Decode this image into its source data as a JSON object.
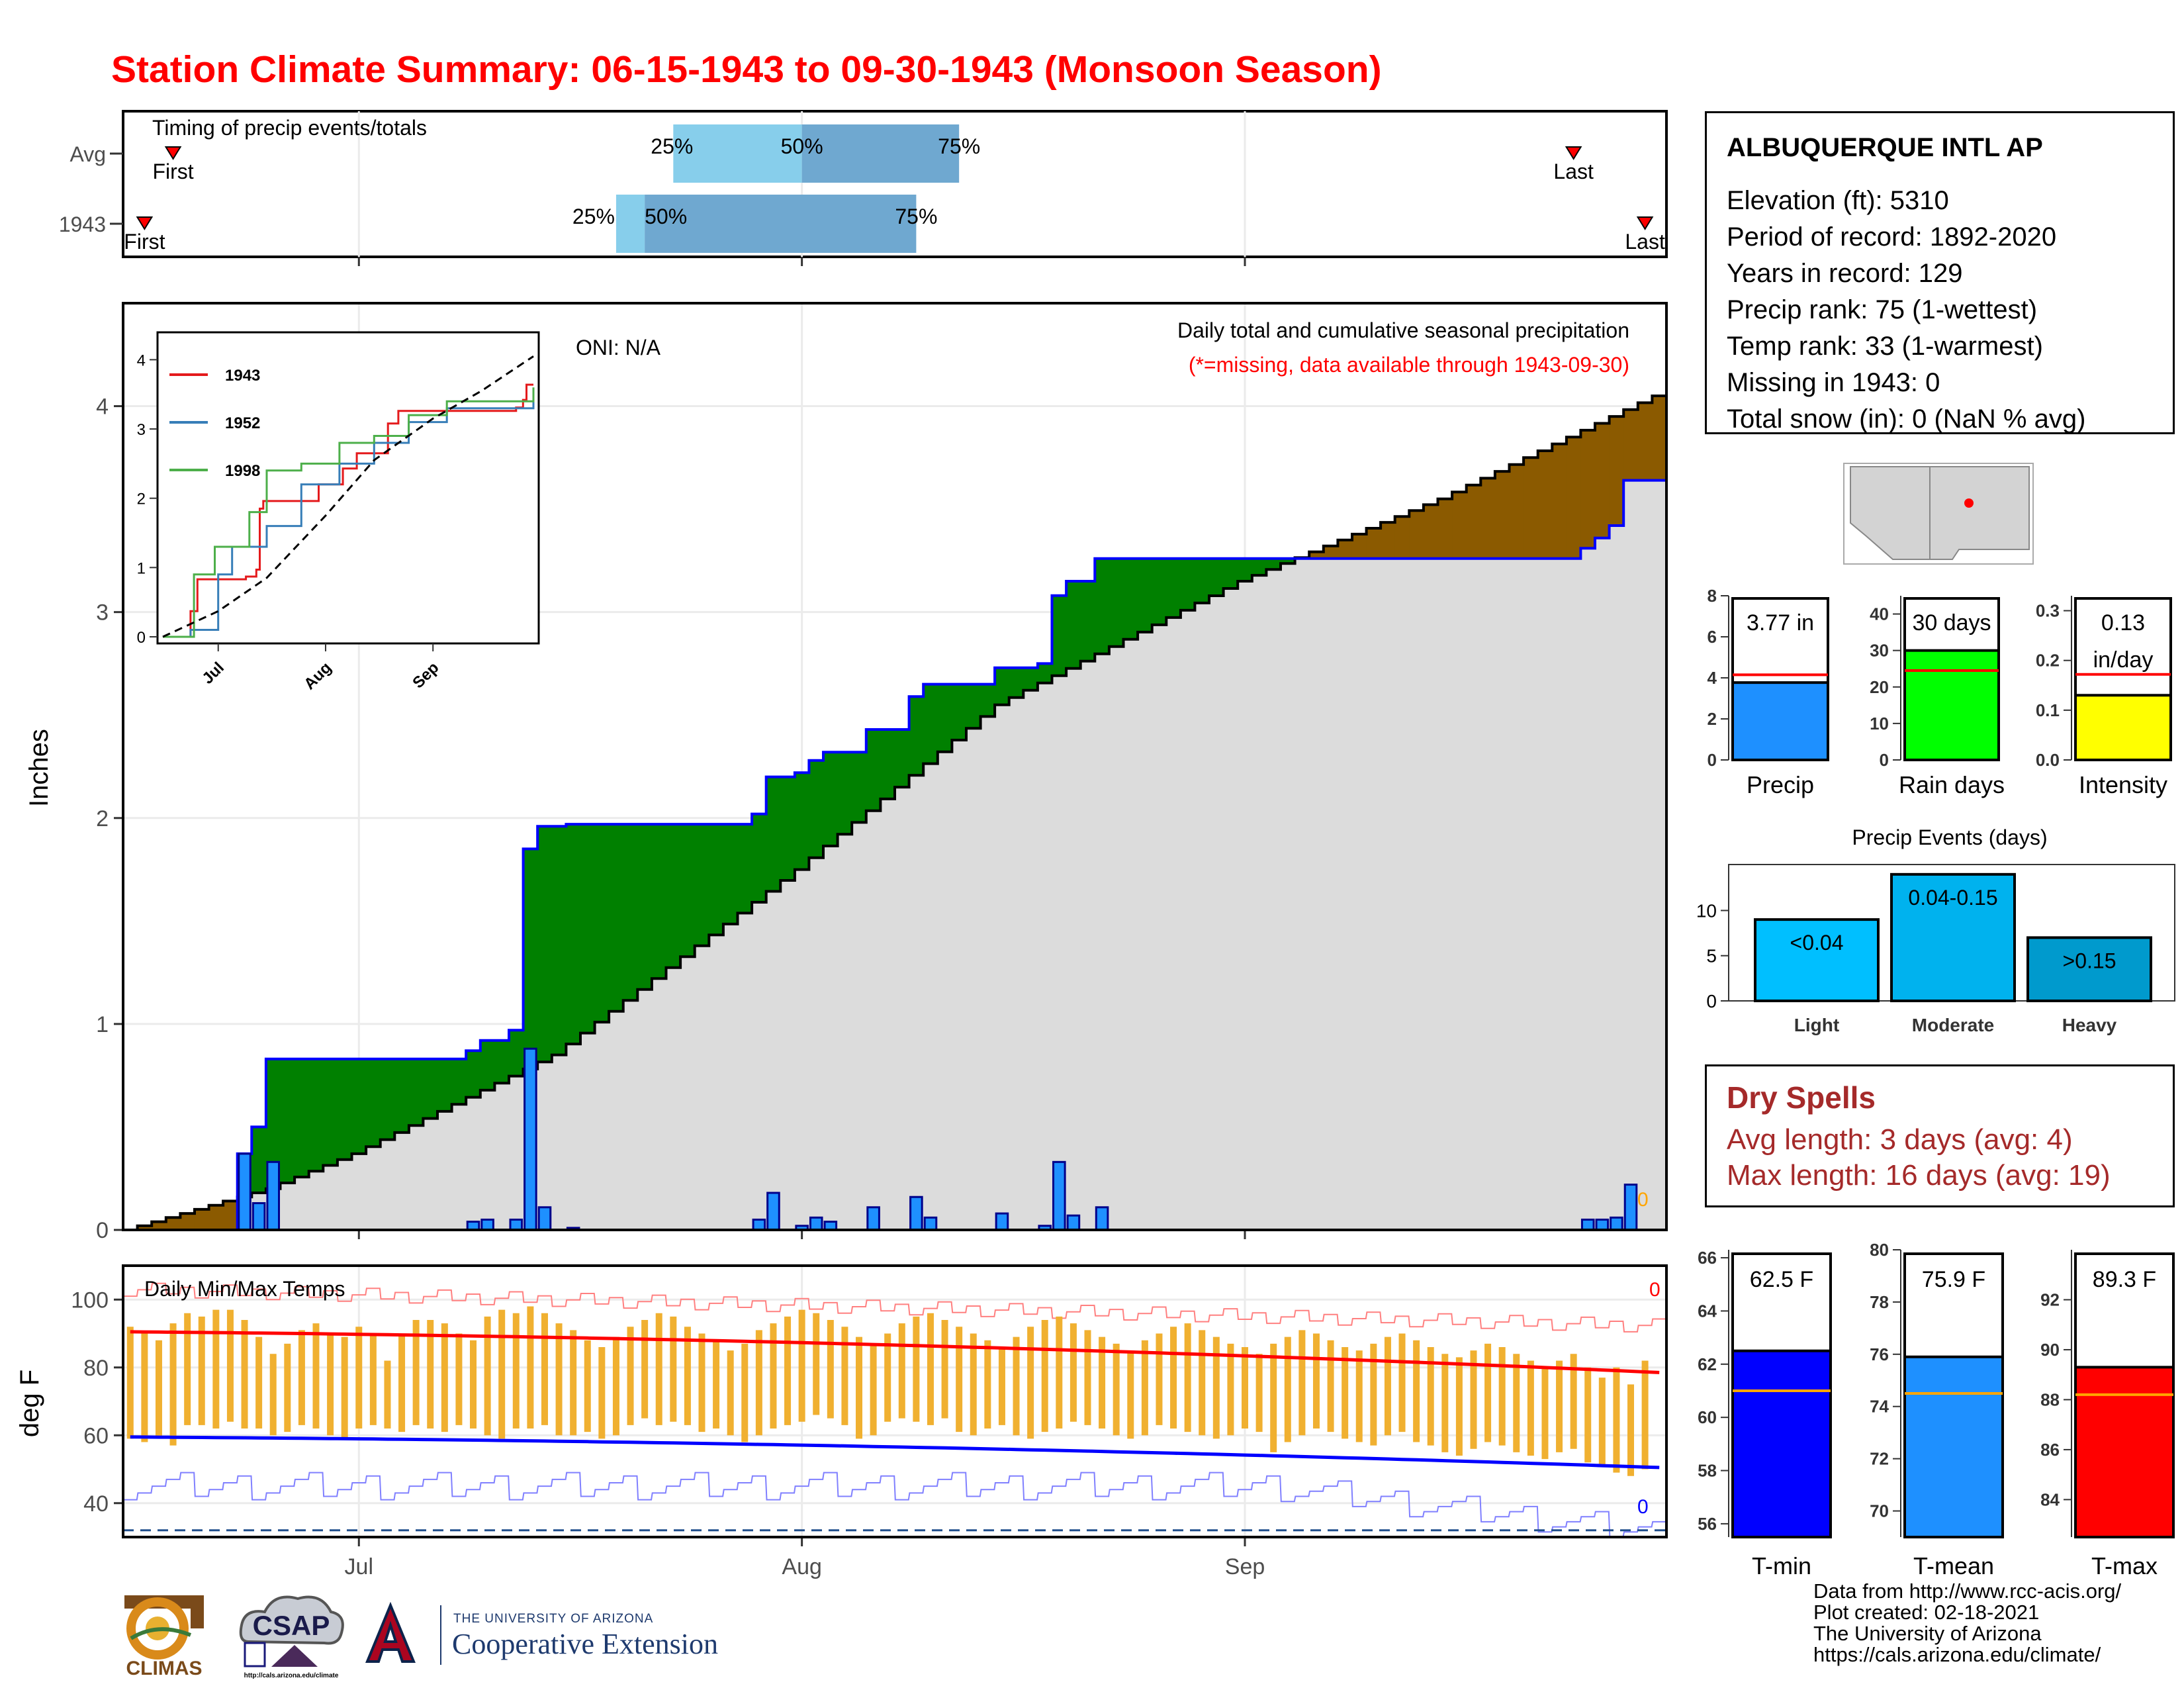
{
  "title": "Station Climate Summary: 06-15-1943 to 09-30-1943 (Monsoon Season)",
  "colors": {
    "title": "#ff0000",
    "green": "#008000",
    "brown": "#8b5a00",
    "precip_bar": "#1e90ff",
    "tmax": "#ff0000",
    "tmin": "#0000ff",
    "orange_bar": "#f0b030",
    "dry": "#a52a2a"
  },
  "timing": {
    "label": "Timing of precip events/totals",
    "rows": [
      {
        "name": "Avg",
        "first_label": "First",
        "last_label": "Last",
        "first": "06-18",
        "last": "09-24",
        "p25": "07-23",
        "p50": "08-01",
        "p75": "08-12",
        "p25_label": "25%",
        "p50_label": "50%",
        "p75_label": "75%"
      },
      {
        "name": "1943",
        "first_label": "First",
        "last_label": "Last",
        "first": "06-16",
        "last": "09-29",
        "p25": "07-19",
        "p50": "07-21",
        "p75": "08-09",
        "p25_label": "25%",
        "p50_label": "50%",
        "p75_label": "75%"
      }
    ]
  },
  "main": {
    "oni": "ONI: N/A",
    "caption": "Daily total and cumulative seasonal precipitation",
    "missing_note": "(*=missing, data available through 1943-09-30)",
    "ylabel": "Inches",
    "yticks": [
      "0",
      "1",
      "2",
      "3",
      "4"
    ],
    "end_marker": "0"
  },
  "inset": {
    "yticks": [
      "0",
      "1",
      "2",
      "3",
      "4"
    ],
    "xticks": [
      "Jul",
      "Aug",
      "Sep"
    ],
    "legend": [
      {
        "name": "1943",
        "color": "#e41a1c"
      },
      {
        "name": "1952",
        "color": "#377eb8"
      },
      {
        "name": "1998",
        "color": "#4daf4a"
      }
    ]
  },
  "temps": {
    "label": "Daily Min/Max Temps",
    "ylabel": "deg F",
    "yticks": [
      "40",
      "60",
      "80",
      "100"
    ],
    "xticks": [
      "Jul",
      "Aug",
      "Sep"
    ],
    "count_top": "0",
    "count_bottom": "0"
  },
  "station": {
    "name": "ALBUQUERQUE INTL AP",
    "lines": [
      "Elevation (ft): 5310",
      "Period of record: 1892-2020",
      "Years in record: 129",
      "Precip rank: 75 (1-wettest)",
      "Temp rank: 33 (1-warmest)",
      "Missing in 1943: 0",
      "Total snow (in): 0 (NaN % avg)"
    ]
  },
  "mini_bars": [
    {
      "label": "Precip",
      "value_text": "3.77 in",
      "value": 3.77,
      "avg": 4.15,
      "ymax": 8,
      "yticks": [
        "0",
        "2",
        "4",
        "6",
        "8"
      ],
      "color": "#1e90ff"
    },
    {
      "label": "Rain days",
      "value_text": "30 days",
      "value": 30,
      "avg": 24.5,
      "ymax": 45,
      "yticks": [
        "0",
        "10",
        "20",
        "30",
        "40"
      ],
      "color": "#00ff00"
    },
    {
      "label": "Intensity",
      "value_text": "0.13\nin/day",
      "value": 0.13,
      "avg": 0.172,
      "ymax": 0.33,
      "yticks": [
        "0.0",
        "0.1",
        "0.2",
        "0.3"
      ],
      "color": "#ffff00"
    }
  ],
  "events": {
    "title": "Precip Events (days)",
    "yticks": [
      "0",
      "5",
      "10"
    ],
    "bars": [
      {
        "label": "Light",
        "range": "<0.04",
        "value": 9,
        "color": "#00bfff"
      },
      {
        "label": "Moderate",
        "range": "0.04-0.15",
        "value": 14,
        "color": "#00b2ee"
      },
      {
        "label": "Heavy",
        "range": ">0.15",
        "value": 7,
        "color": "#009acd"
      }
    ]
  },
  "dry_spells": {
    "title": "Dry Spells",
    "lines": [
      "Avg length: 3 days (avg: 4)",
      "Max length: 16 days (avg: 19)"
    ]
  },
  "temp_bars": [
    {
      "label": "T-min",
      "value_text": "62.5 F",
      "value": 62.5,
      "avg": 61.0,
      "ymin": 55.5,
      "ymax": 66.3,
      "yticks": [
        "56",
        "58",
        "60",
        "62",
        "64",
        "66"
      ],
      "color": "#0000ff"
    },
    {
      "label": "T-mean",
      "value_text": "75.9 F",
      "value": 75.9,
      "avg": 74.5,
      "ymin": 69.0,
      "ymax": 80.0,
      "yticks": [
        "70",
        "72",
        "74",
        "76",
        "78",
        "80"
      ],
      "color": "#1e90ff"
    },
    {
      "label": "T-max",
      "value_text": "89.3 F",
      "value": 89.3,
      "avg": 88.2,
      "ymin": 82.5,
      "ymax": 94.0,
      "yticks": [
        "84",
        "86",
        "88",
        "90",
        "92"
      ],
      "color": "#ff0000"
    }
  ],
  "credits": [
    "Data from http://www.rcc-acis.org/",
    "Plot created: 02-18-2021",
    "The University of Arizona",
    "https://cals.arizona.edu/climate/"
  ],
  "logos": {
    "climas": "CLIMAS",
    "csap": "CSAP",
    "csap_url": "http://cals.arizona.edu/climate",
    "ua_small": "THE UNIVERSITY OF ARIZONA",
    "ua_big": "Cooperative Extension"
  },
  "chart_data": [
    {
      "type": "area",
      "title": "Daily total and cumulative seasonal precipitation",
      "ylabel": "Inches",
      "ylim": [
        0,
        4.5
      ],
      "x_start": "1943-06-15",
      "x_end": "1943-09-30",
      "xticks": [
        "Jul",
        "Aug",
        "Sep"
      ],
      "daily_precip_1943": [
        {
          "date": "1943-06-23",
          "value": 0.37
        },
        {
          "date": "1943-06-24",
          "value": 0.13
        },
        {
          "date": "1943-06-25",
          "value": 0.33
        },
        {
          "date": "1943-07-09",
          "value": 0.04
        },
        {
          "date": "1943-07-10",
          "value": 0.05
        },
        {
          "date": "1943-07-12",
          "value": 0.05
        },
        {
          "date": "1943-07-13",
          "value": 0.88
        },
        {
          "date": "1943-07-14",
          "value": 0.11
        },
        {
          "date": "1943-07-16",
          "value": 0.01
        },
        {
          "date": "1943-07-29",
          "value": 0.05
        },
        {
          "date": "1943-07-30",
          "value": 0.18
        },
        {
          "date": "1943-08-01",
          "value": 0.02
        },
        {
          "date": "1943-08-02",
          "value": 0.06
        },
        {
          "date": "1943-08-03",
          "value": 0.04
        },
        {
          "date": "1943-08-06",
          "value": 0.11
        },
        {
          "date": "1943-08-09",
          "value": 0.16
        },
        {
          "date": "1943-08-10",
          "value": 0.06
        },
        {
          "date": "1943-08-15",
          "value": 0.08
        },
        {
          "date": "1943-08-18",
          "value": 0.02
        },
        {
          "date": "1943-08-19",
          "value": 0.33
        },
        {
          "date": "1943-08-20",
          "value": 0.07
        },
        {
          "date": "1943-08-22",
          "value": 0.11
        },
        {
          "date": "1943-09-25",
          "value": 0.05
        },
        {
          "date": "1943-09-26",
          "value": 0.05
        },
        {
          "date": "1943-09-27",
          "value": 0.06
        },
        {
          "date": "1943-09-28",
          "value": 0.22
        }
      ],
      "cumulative_1943_steps": [
        {
          "date": "1943-06-15",
          "value": 0
        },
        {
          "date": "1943-06-23",
          "value": 0.37
        },
        {
          "date": "1943-06-24",
          "value": 0.5
        },
        {
          "date": "1943-06-25",
          "value": 0.83
        },
        {
          "date": "1943-07-09",
          "value": 0.87
        },
        {
          "date": "1943-07-10",
          "value": 0.92
        },
        {
          "date": "1943-07-12",
          "value": 0.97
        },
        {
          "date": "1943-07-13",
          "value": 1.85
        },
        {
          "date": "1943-07-14",
          "value": 1.96
        },
        {
          "date": "1943-07-16",
          "value": 1.97
        },
        {
          "date": "1943-07-29",
          "value": 2.02
        },
        {
          "date": "1943-07-30",
          "value": 2.2
        },
        {
          "date": "1943-08-01",
          "value": 2.22
        },
        {
          "date": "1943-08-02",
          "value": 2.28
        },
        {
          "date": "1943-08-03",
          "value": 2.32
        },
        {
          "date": "1943-08-06",
          "value": 2.43
        },
        {
          "date": "1943-08-09",
          "value": 2.59
        },
        {
          "date": "1943-08-10",
          "value": 2.65
        },
        {
          "date": "1943-08-15",
          "value": 2.73
        },
        {
          "date": "1943-08-18",
          "value": 2.75
        },
        {
          "date": "1943-08-19",
          "value": 3.08
        },
        {
          "date": "1943-08-20",
          "value": 3.15
        },
        {
          "date": "1943-08-22",
          "value": 3.26
        },
        {
          "date": "1943-09-25",
          "value": 3.31
        },
        {
          "date": "1943-09-26",
          "value": 3.36
        },
        {
          "date": "1943-09-27",
          "value": 3.42
        },
        {
          "date": "1943-09-28",
          "value": 3.64
        }
      ],
      "avg_cumulative": [
        {
          "date": "1943-06-15",
          "value": 0.0
        },
        {
          "date": "1943-06-25",
          "value": 0.2
        },
        {
          "date": "1943-07-01",
          "value": 0.37
        },
        {
          "date": "1943-07-15",
          "value": 0.85
        },
        {
          "date": "1943-08-01",
          "value": 1.75
        },
        {
          "date": "1943-08-15",
          "value": 2.55
        },
        {
          "date": "1943-09-01",
          "value": 3.15
        },
        {
          "date": "1943-09-15",
          "value": 3.55
        },
        {
          "date": "1943-09-30",
          "value": 4.05
        }
      ]
    },
    {
      "type": "line",
      "title": "",
      "ylim": [
        0,
        4.3
      ],
      "yticks": [
        0,
        1,
        2,
        3,
        4
      ],
      "x_start": "1943-06-15",
      "x_end": "1943-09-30",
      "xticks": [
        "Jul",
        "Aug",
        "Sep"
      ],
      "series": [
        {
          "name": "1943",
          "points": [
            [
              "06-15",
              0
            ],
            [
              "06-23",
              0.37
            ],
            [
              "06-25",
              0.83
            ],
            [
              "07-09",
              0.87
            ],
            [
              "07-12",
              0.97
            ],
            [
              "07-13",
              1.85
            ],
            [
              "07-14",
              1.96
            ],
            [
              "07-30",
              2.2
            ],
            [
              "08-06",
              2.43
            ],
            [
              "08-10",
              2.65
            ],
            [
              "08-19",
              3.08
            ],
            [
              "08-22",
              3.26
            ],
            [
              "09-25",
              3.31
            ],
            [
              "09-27",
              3.42
            ],
            [
              "09-28",
              3.64
            ]
          ]
        },
        {
          "name": "1952",
          "points": [
            [
              "06-15",
              0
            ],
            [
              "06-23",
              0.1
            ],
            [
              "07-01",
              0.9
            ],
            [
              "07-05",
              1.3
            ],
            [
              "07-15",
              1.6
            ],
            [
              "07-25",
              2.2
            ],
            [
              "08-05",
              2.5
            ],
            [
              "08-15",
              2.8
            ],
            [
              "08-25",
              3.1
            ],
            [
              "09-05",
              3.3
            ],
            [
              "09-30",
              3.5
            ]
          ]
        },
        {
          "name": "1998",
          "points": [
            [
              "06-15",
              0
            ],
            [
              "06-24",
              0.9
            ],
            [
              "06-30",
              1.3
            ],
            [
              "07-10",
              1.8
            ],
            [
              "07-15",
              2.4
            ],
            [
              "07-25",
              2.5
            ],
            [
              "08-05",
              2.8
            ],
            [
              "08-15",
              2.9
            ],
            [
              "08-25",
              3.2
            ],
            [
              "09-05",
              3.4
            ],
            [
              "09-30",
              3.6
            ]
          ]
        },
        {
          "name": "Avg",
          "points": [
            [
              "06-15",
              0
            ],
            [
              "07-01",
              0.37
            ],
            [
              "07-15",
              0.85
            ],
            [
              "08-01",
              1.75
            ],
            [
              "08-15",
              2.55
            ],
            [
              "09-01",
              3.15
            ],
            [
              "09-15",
              3.55
            ],
            [
              "09-30",
              4.05
            ]
          ]
        }
      ]
    },
    {
      "type": "bar",
      "title": "Daily Min/Max Temps",
      "ylabel": "deg F",
      "ylim": [
        30,
        110
      ],
      "x_start": "1943-06-15",
      "x_end": "1943-09-30",
      "daily_tmax": [
        92,
        90,
        88,
        93,
        96,
        95,
        97,
        97,
        94,
        89,
        84,
        87,
        91,
        93,
        90,
        89,
        92,
        90,
        82,
        90,
        94,
        94,
        93,
        90,
        88,
        95,
        97,
        96,
        98,
        96,
        93,
        91,
        88,
        86,
        89,
        92,
        94,
        96,
        95,
        92,
        90,
        88,
        85,
        87,
        91,
        93,
        95,
        97,
        96,
        94,
        92,
        89,
        87,
        90,
        93,
        95,
        96,
        94,
        92,
        90,
        88,
        86,
        89,
        92,
        94,
        95,
        93,
        91,
        89,
        87,
        85,
        88,
        90,
        92,
        93,
        91,
        89,
        87,
        86,
        84,
        87,
        89,
        91,
        90,
        88,
        86,
        85,
        87,
        89,
        90,
        88,
        86,
        84,
        83,
        85,
        87,
        86,
        84,
        82,
        80,
        82,
        84,
        80,
        77,
        80,
        75,
        82
      ],
      "daily_tmin": [
        59,
        58,
        59,
        57,
        63,
        63,
        62,
        64,
        62,
        62,
        60,
        61,
        63,
        62,
        60,
        59,
        62,
        63,
        62,
        61,
        63,
        62,
        61,
        63,
        62,
        60,
        59,
        62,
        62,
        63,
        60,
        60,
        61,
        59,
        60,
        63,
        65,
        63,
        64,
        63,
        61,
        62,
        60,
        58,
        60,
        62,
        63,
        64,
        66,
        65,
        63,
        59,
        60,
        64,
        65,
        64,
        63,
        65,
        61,
        60,
        62,
        63,
        60,
        59,
        61,
        62,
        64,
        63,
        62,
        60,
        59,
        60,
        63,
        62,
        61,
        60,
        59,
        60,
        62,
        61,
        55,
        58,
        60,
        62,
        61,
        59,
        58,
        57,
        60,
        61,
        58,
        57,
        55,
        54,
        56,
        58,
        57,
        55,
        54,
        53,
        55,
        56,
        52,
        51,
        49,
        48,
        50
      ],
      "avg_tmax_range": [
        90.5,
        78.5
      ],
      "avg_tmin_range": [
        59.5,
        50.5
      ],
      "freeze_line": 32
    },
    {
      "type": "bar",
      "title": "",
      "categories": [
        "Precip"
      ],
      "values": [
        3.77
      ],
      "avg": 4.15,
      "ylim": [
        0,
        8
      ]
    },
    {
      "type": "bar",
      "title": "",
      "categories": [
        "Rain days"
      ],
      "values": [
        30
      ],
      "avg": 24.5,
      "ylim": [
        0,
        45
      ]
    },
    {
      "type": "bar",
      "title": "",
      "categories": [
        "Intensity"
      ],
      "values": [
        0.13
      ],
      "avg": 0.172,
      "ylim": [
        0,
        0.33
      ]
    },
    {
      "type": "bar",
      "title": "Precip Events (days)",
      "categories": [
        "Light",
        "Moderate",
        "Heavy"
      ],
      "values": [
        9,
        14,
        7
      ],
      "ylim": [
        0,
        14.5
      ]
    },
    {
      "type": "bar",
      "title": "",
      "categories": [
        "T-min"
      ],
      "values": [
        62.5
      ],
      "avg": 61.0,
      "ylim": [
        55.5,
        66.3
      ]
    },
    {
      "type": "bar",
      "title": "",
      "categories": [
        "T-mean"
      ],
      "values": [
        75.9
      ],
      "avg": 74.5,
      "ylim": [
        69.0,
        80.0
      ]
    },
    {
      "type": "bar",
      "title": "",
      "categories": [
        "T-max"
      ],
      "values": [
        89.3
      ],
      "avg": 88.2,
      "ylim": [
        82.5,
        94.0
      ]
    }
  ]
}
